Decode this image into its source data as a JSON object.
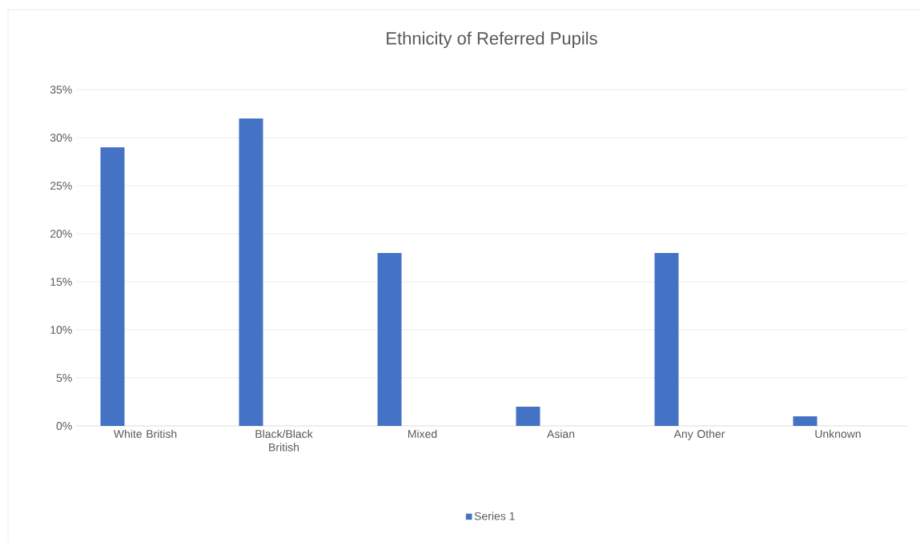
{
  "chart_data": {
    "type": "bar",
    "title": "Ethnicity of Referred Pupils",
    "categories": [
      "White British",
      "Black/Black British",
      "Mixed",
      "Asian",
      "Any Other",
      "Unknown"
    ],
    "series": [
      {
        "name": "Series 1",
        "color": "#4472c4",
        "values": [
          29,
          32,
          18,
          2,
          18,
          1
        ]
      }
    ],
    "ylim": [
      0,
      35
    ],
    "yticks": [
      {
        "value": 0,
        "label": "0%"
      },
      {
        "value": 5,
        "label": "5%"
      },
      {
        "value": 10,
        "label": "10%"
      },
      {
        "value": 15,
        "label": "15%"
      },
      {
        "value": 20,
        "label": "20%"
      },
      {
        "value": 25,
        "label": "25%"
      },
      {
        "value": 30,
        "label": "30%"
      },
      {
        "value": 35,
        "label": "35%"
      }
    ],
    "grid": "y",
    "legend": "bottom"
  }
}
